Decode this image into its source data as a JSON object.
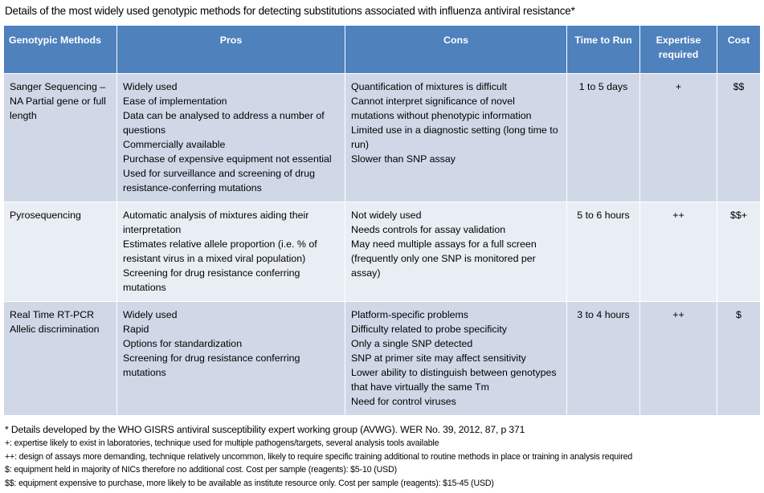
{
  "title": "Details of the most widely used genotypic methods for detecting substitutions associated with influenza antiviral resistance*",
  "table": {
    "header": [
      "Genotypic Methods",
      "Pros",
      "Cons",
      "Time to Run",
      "Expertise required",
      "Cost"
    ],
    "rows": [
      [
        "Sanger Sequencing – NA Partial gene or full length",
        [
          "Widely used",
          "Ease of implementation",
          "Data can be analysed to address  a number of questions",
          "Commercially available",
          "Purchase of expensive equipment not essential",
          "Used for surveillance and screening of drug resistance-conferring mutations"
        ],
        [
          "Quantification of mixtures is difficult",
          "Cannot interpret significance of novel mutations without phenotypic information",
          "Limited use in a diagnostic setting (long time to run)",
          "Slower than SNP assay"
        ],
        "1 to 5 days",
        "+",
        "$$"
      ],
      [
        "Pyrosequencing",
        [
          "Automatic analysis of mixtures aiding their interpretation",
          "Estimates relative allele proportion (i.e. % of resistant virus in a mixed viral population)",
          "Screening for drug resistance conferring mutations"
        ],
        [
          "Not widely used",
          "Needs controls for assay validation",
          "May need multiple assays for a full screen (frequently only one SNP is monitored per assay)"
        ],
        "5 to 6 hours",
        "++",
        "$$+"
      ],
      [
        "Real Time RT-PCR Allelic discrimination",
        [
          "Widely used",
          "Rapid",
          "Options for standardization",
          "Screening for drug resistance conferring mutations"
        ],
        [
          "Platform-specific problems",
          "Difficulty related to probe specificity",
          "Only a single SNP detected",
          "SNP at primer site may affect sensitivity",
          "Lower ability to distinguish between genotypes that have virtually the same Tm",
          "Need for control viruses"
        ],
        "3 to 4 hours",
        "++",
        "$"
      ]
    ]
  },
  "footnotes": [
    "* Details developed by the WHO GISRS antiviral susceptibility expert working group (AVWG). WER No. 39, 2012,  87, p 371",
    "+: expertise likely to exist in laboratories, technique used for multiple pathogens/targets, several analysis tools available",
    "++: design of assays more demanding, technique relatively uncommon, likely to require specific training additional to routine methods in place or training in analysis required",
    "$: equipment held in majority of NICs therefore no additional cost. Cost per sample (reagents): $5-10 (USD)",
    "$$: equipment expensive to purchase, more likely to be available as institute resource only. Cost per sample (reagents): $15-45 (USD)"
  ]
}
